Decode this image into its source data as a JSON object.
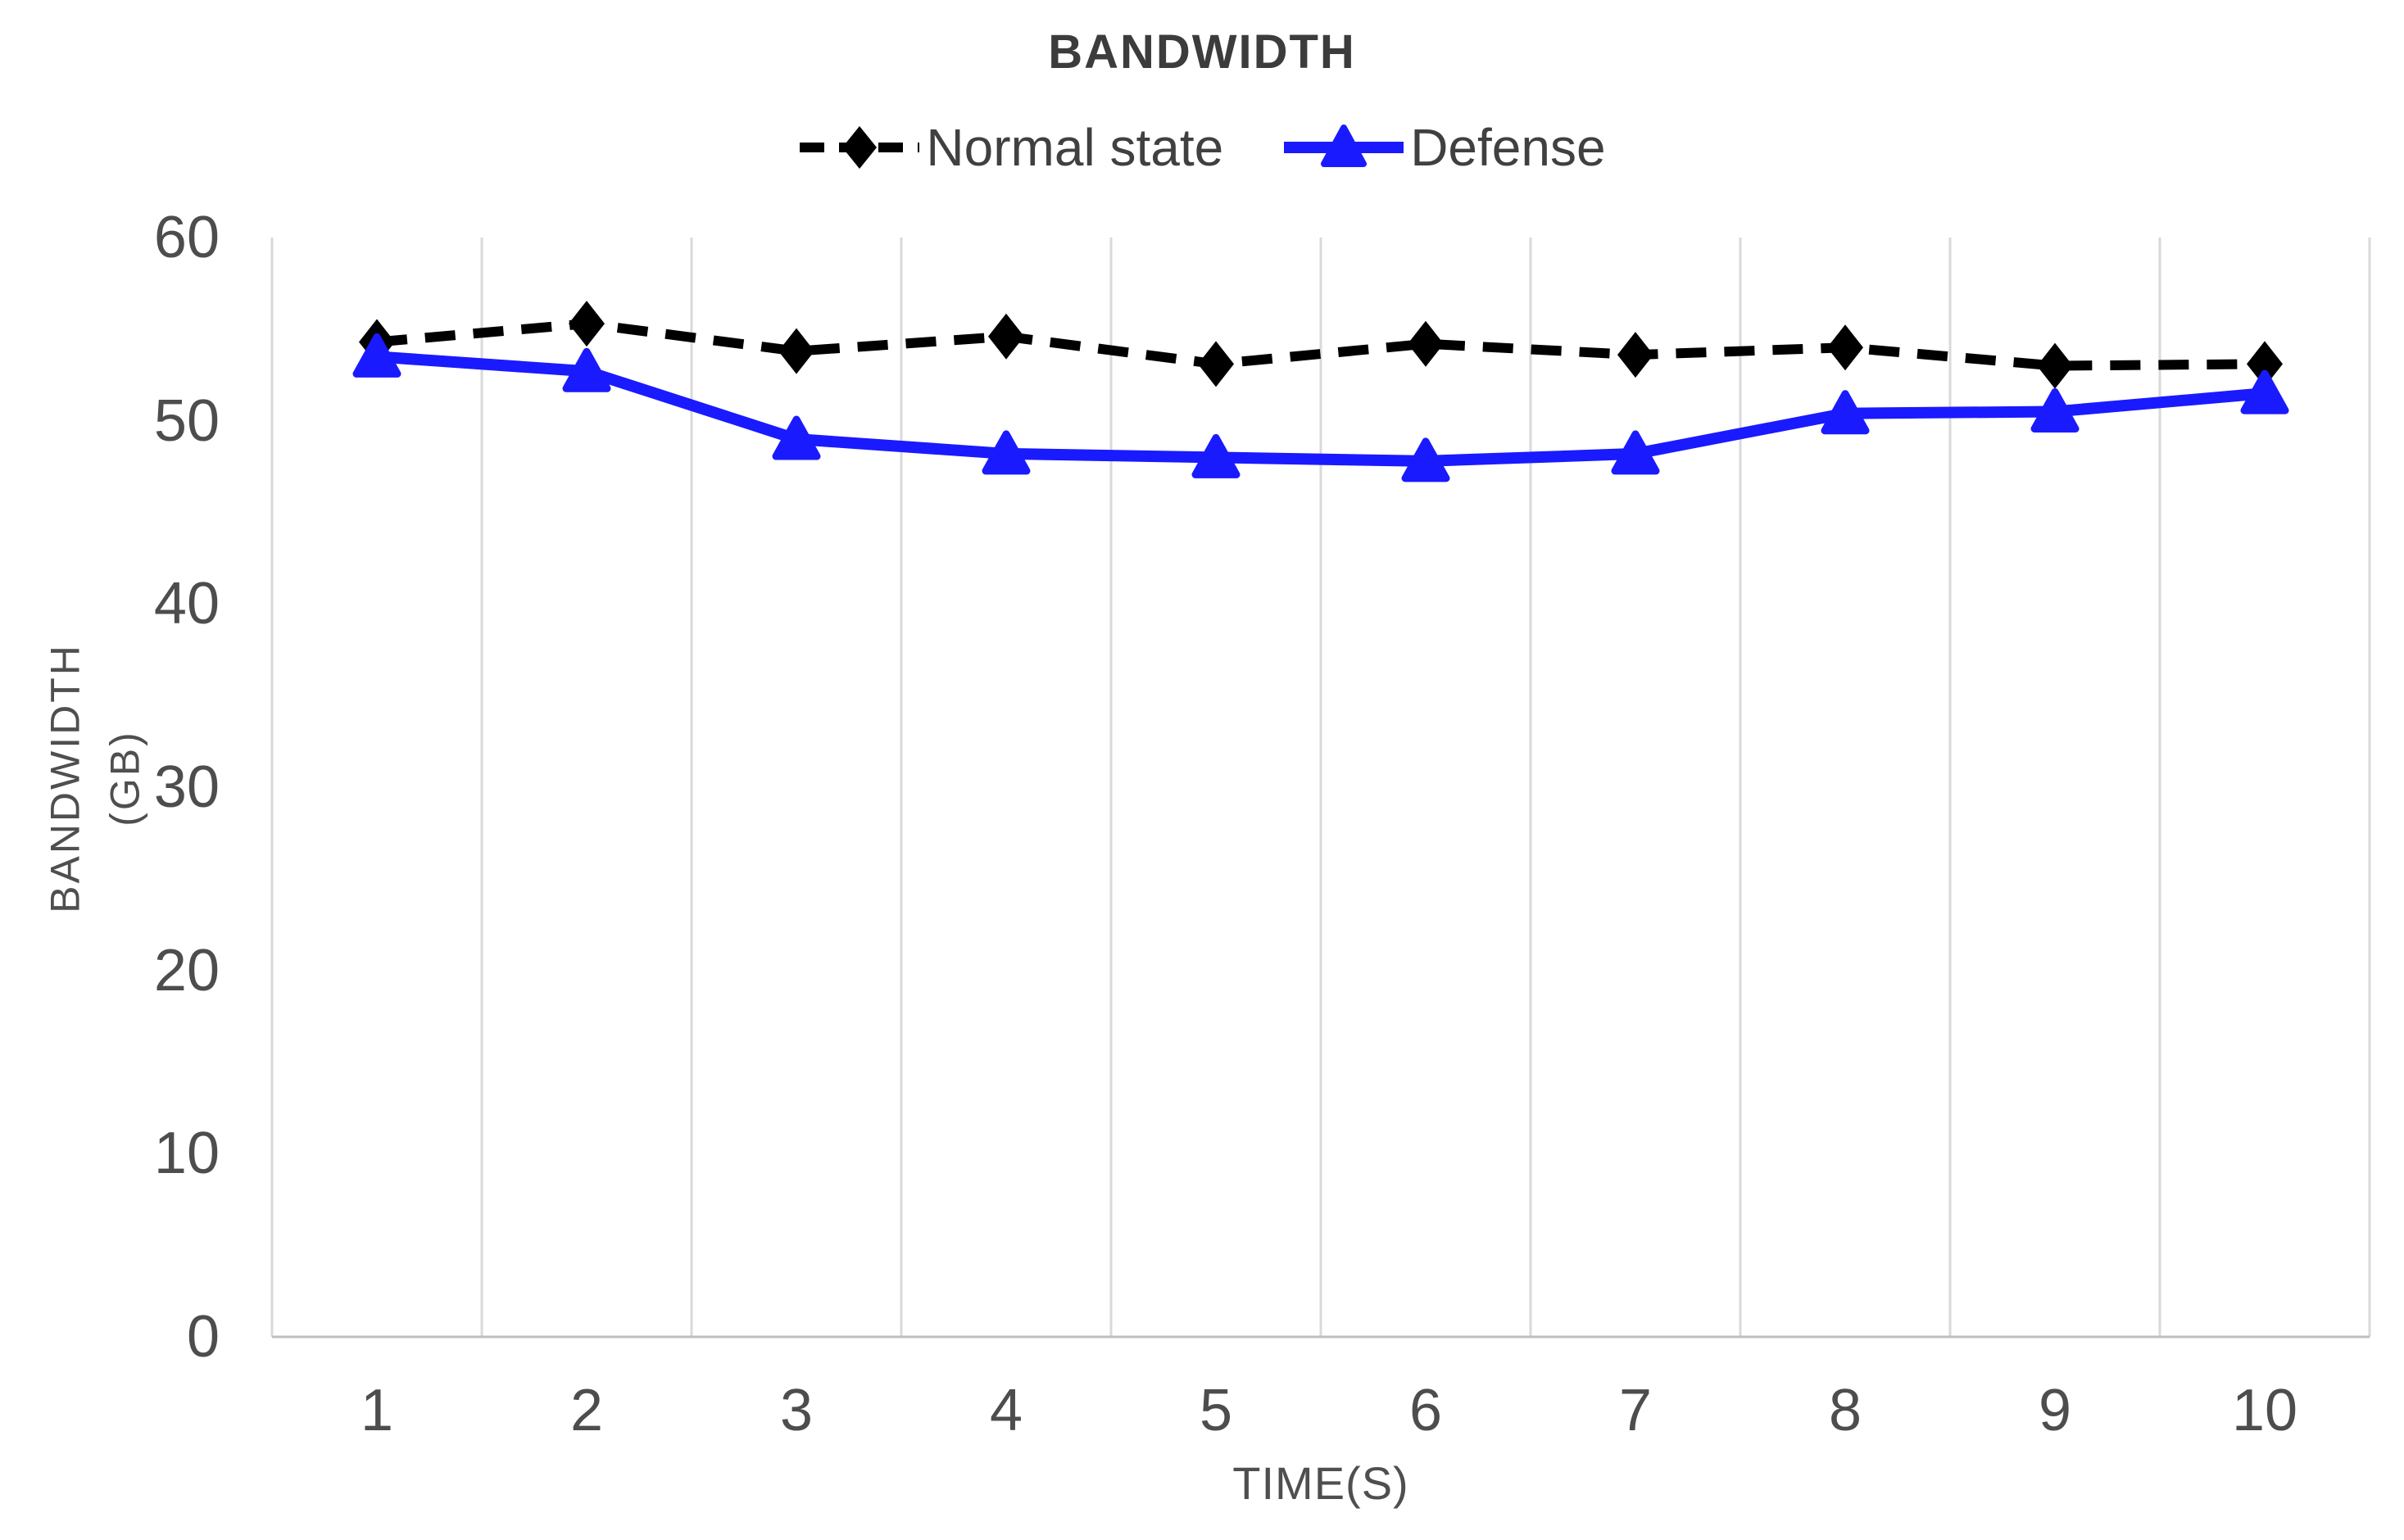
{
  "chart_data": {
    "type": "line",
    "title": "BANDWIDTH",
    "xlabel": "TIME(S)",
    "ylabel": "BANDWIDTH (GB)",
    "ylabel_lines": [
      "BANDWIDTH",
      "(GB)"
    ],
    "x": [
      1,
      2,
      3,
      4,
      5,
      6,
      7,
      8,
      9,
      10
    ],
    "xticks": [
      "1",
      "2",
      "3",
      "4",
      "5",
      "6",
      "7",
      "8",
      "9",
      "10"
    ],
    "yticks": [
      0,
      10,
      20,
      30,
      40,
      50,
      60
    ],
    "ylim": [
      0,
      60
    ],
    "grid": "vertical-only",
    "grid_color": "#d9d9d9",
    "axis_line_color": "#bfbfbf",
    "legend_position": "top-center",
    "series": [
      {
        "name": "Normal state",
        "color": "#000000",
        "line_style": "dashed",
        "marker": "diamond",
        "values": [
          54.3,
          55.3,
          53.8,
          54.6,
          53.1,
          54.2,
          53.6,
          54.0,
          53.0,
          53.1
        ]
      },
      {
        "name": "Defense",
        "color": "#1a1aff",
        "line_style": "solid",
        "marker": "triangle",
        "values": [
          53.5,
          52.7,
          49.0,
          48.2,
          48.0,
          47.8,
          48.2,
          50.4,
          50.5,
          51.5
        ]
      }
    ]
  }
}
